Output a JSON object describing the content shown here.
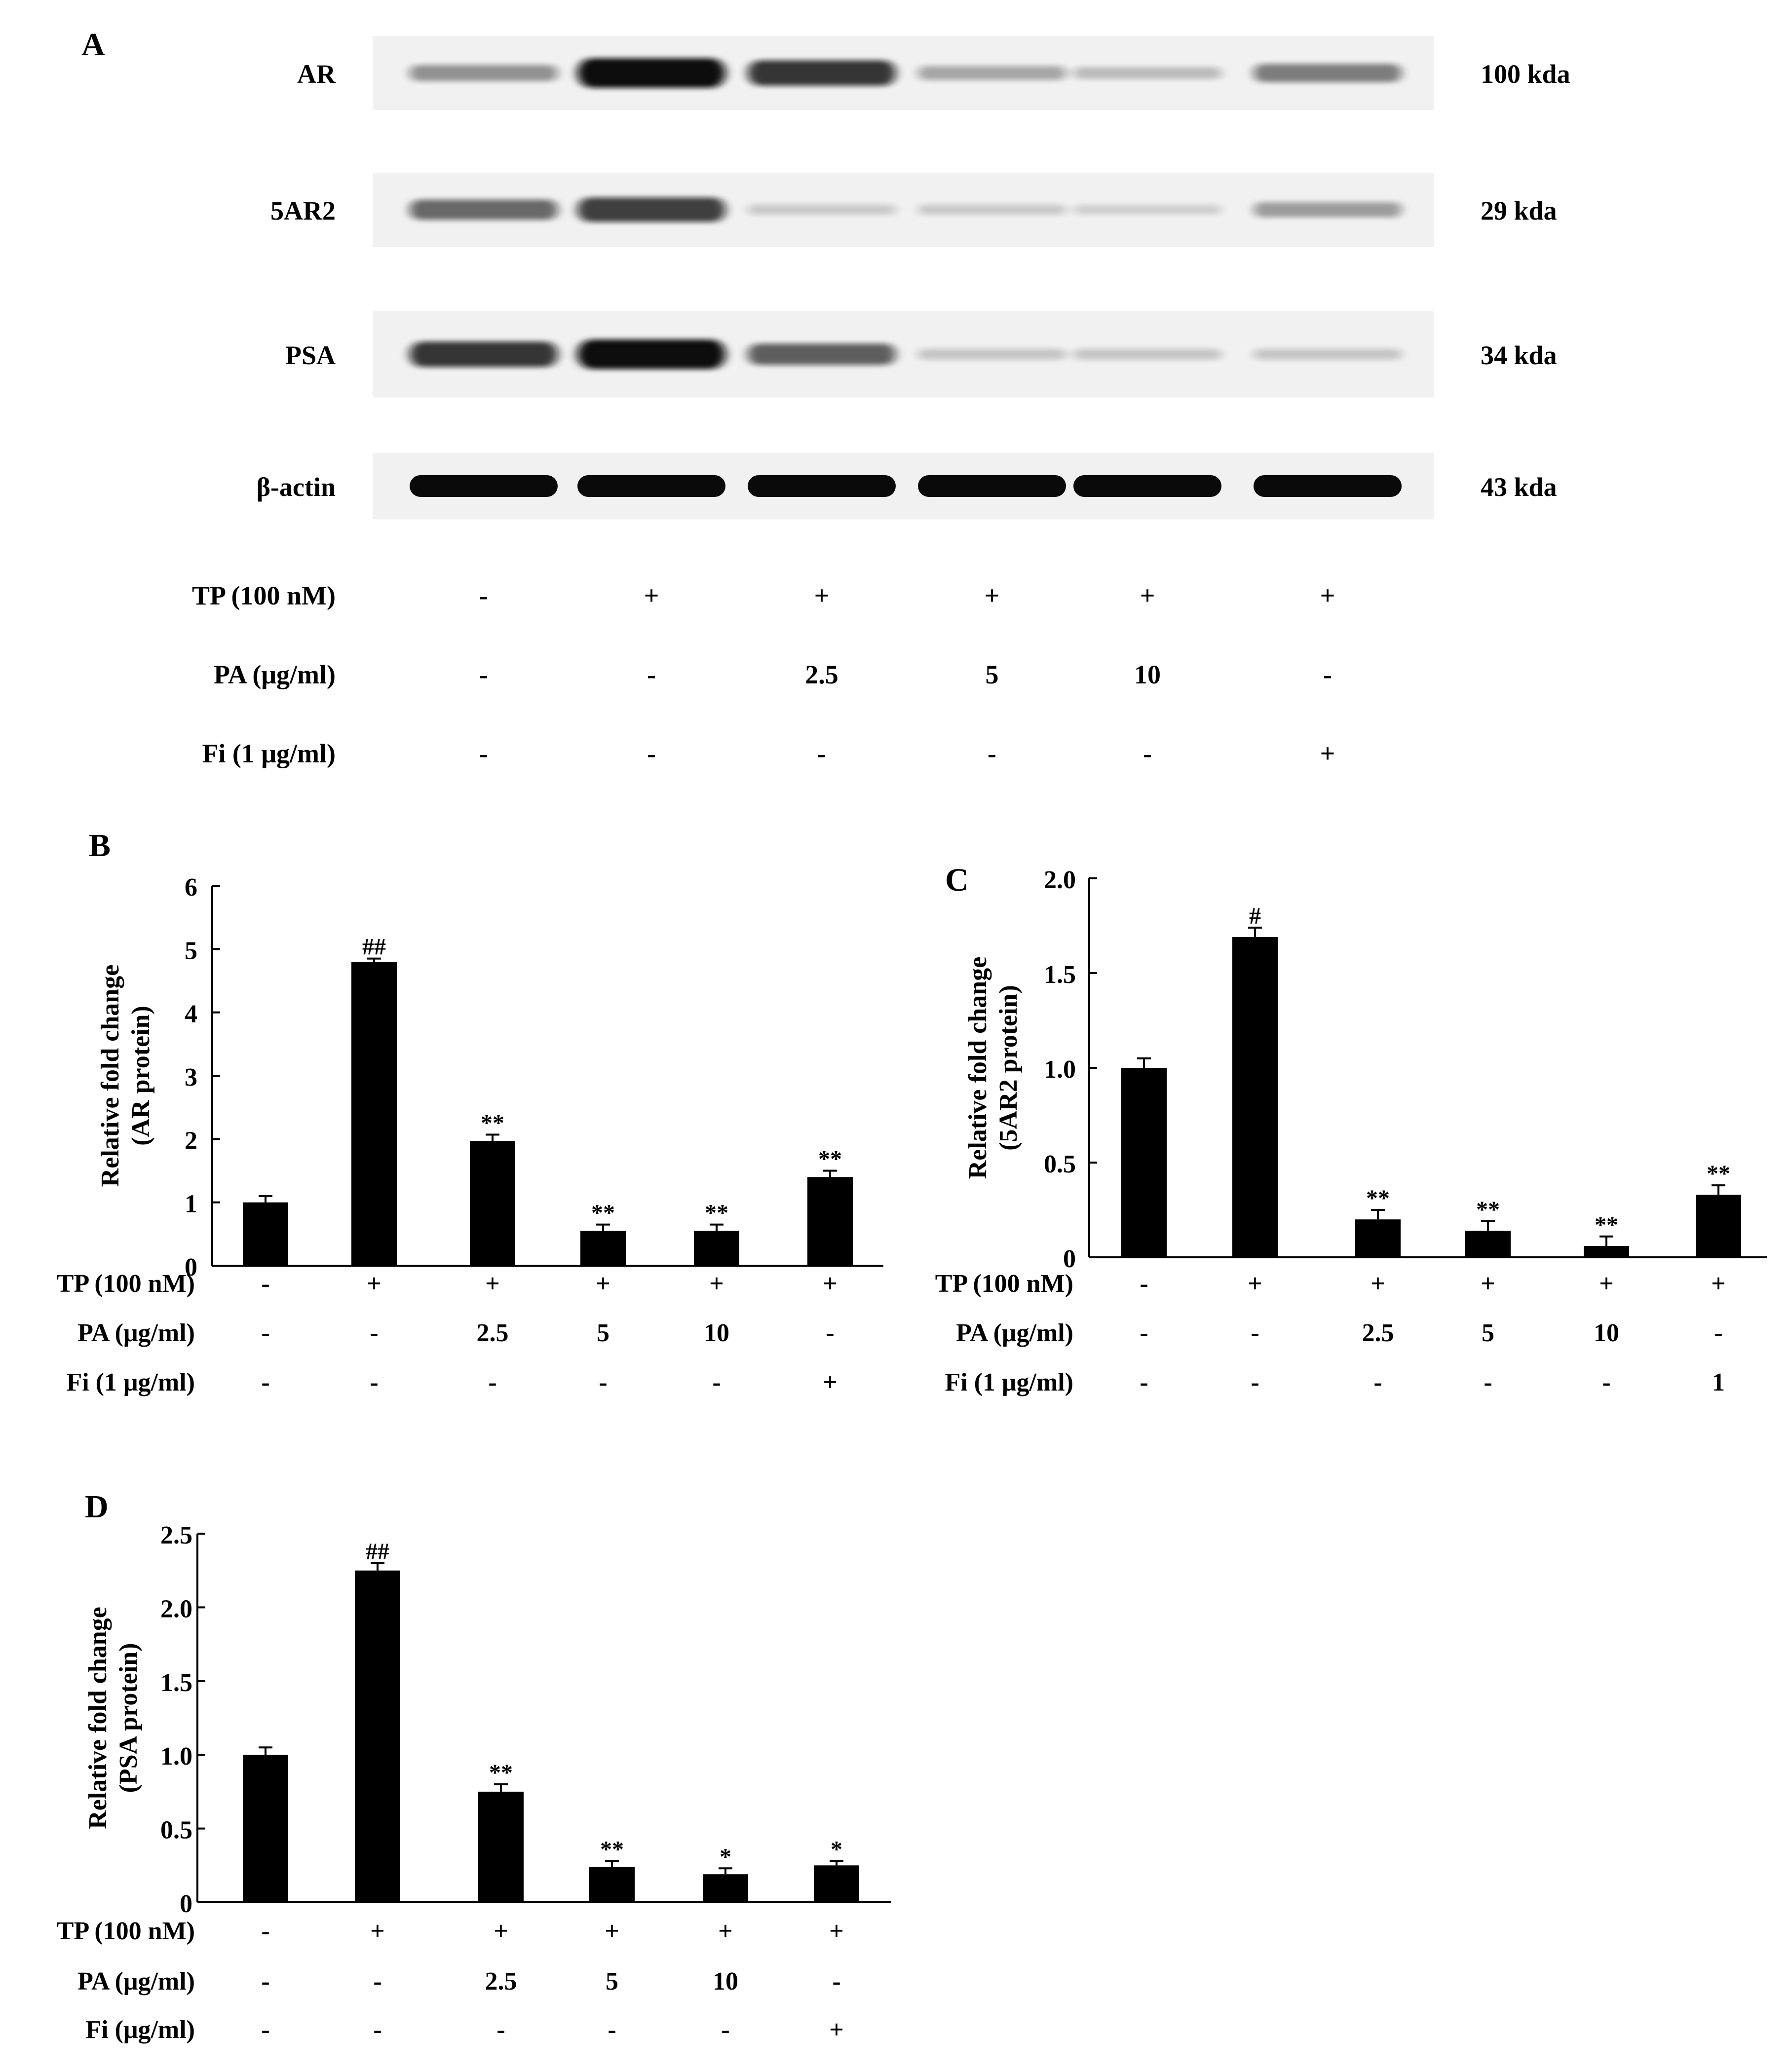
{
  "colors": {
    "bar": "#000000",
    "axis": "#000000",
    "blot_bg": "#f1f1f1",
    "band": "#0a0a0a",
    "text": "#000000"
  },
  "panel_a": {
    "letter": "A",
    "proteins": [
      {
        "name": "AR",
        "size": "100 kda",
        "intensities": [
          0.35,
          1.0,
          0.8,
          0.25,
          0.15,
          0.45
        ]
      },
      {
        "name": "5AR2",
        "size": "29 kda",
        "intensities": [
          0.55,
          0.75,
          0.08,
          0.08,
          0.05,
          0.3
        ]
      },
      {
        "name": "PSA",
        "size": "34 kda",
        "intensities": [
          0.8,
          1.0,
          0.6,
          0.1,
          0.1,
          0.1
        ]
      },
      {
        "name": "β-actin",
        "size": "43 kda",
        "intensities": [
          1.0,
          1.0,
          1.0,
          1.0,
          1.0,
          1.0
        ]
      }
    ],
    "treatment_rows": [
      {
        "label": "TP (100 nM)",
        "values": [
          "-",
          "+",
          "+",
          "+",
          "+",
          "+"
        ]
      },
      {
        "label": "PA (μg/ml)",
        "values": [
          "-",
          "-",
          "2.5",
          "5",
          "10",
          "-"
        ]
      },
      {
        "label": "Fi (1 μg/ml)",
        "values": [
          "-",
          "-",
          "-",
          "-",
          "-",
          "+"
        ]
      }
    ]
  },
  "chart_data": [
    {
      "panel": "B",
      "type": "bar",
      "title": "",
      "ylabel_line1": "Relative fold change",
      "ylabel_line2": "(AR protein)",
      "ylim": [
        0,
        6
      ],
      "yticks": [
        0,
        1,
        2,
        3,
        4,
        5,
        6
      ],
      "ytick_labels": [
        "0",
        "1",
        "2",
        "3",
        "4",
        "5",
        "6"
      ],
      "values": [
        1.0,
        4.8,
        1.97,
        0.55,
        0.55,
        1.4
      ],
      "errors": [
        0.1,
        0.05,
        0.1,
        0.1,
        0.1,
        0.1
      ],
      "significance": [
        "",
        "##",
        "**",
        "**",
        "**",
        "**"
      ],
      "treatment_rows": [
        {
          "label": "TP (100 nM)",
          "values": [
            "-",
            "+",
            "+",
            "+",
            "+",
            "+"
          ]
        },
        {
          "label": "PA (μg/ml)",
          "values": [
            "-",
            "-",
            "2.5",
            "5",
            "10",
            "-"
          ]
        },
        {
          "label": "Fi (1 μg/ml)",
          "values": [
            "-",
            "-",
            "-",
            "-",
            "-",
            "+"
          ]
        }
      ]
    },
    {
      "panel": "C",
      "type": "bar",
      "title": "",
      "ylabel_line1": "Relative fold change",
      "ylabel_line2": "(5AR2 protein)",
      "ylim": [
        0,
        2.0
      ],
      "yticks": [
        0,
        0.5,
        1.0,
        1.5,
        2.0
      ],
      "ytick_labels": [
        "0",
        "0.5",
        "1.0",
        "1.5",
        "2.0"
      ],
      "values": [
        1.0,
        1.69,
        0.2,
        0.14,
        0.06,
        0.33
      ],
      "errors": [
        0.05,
        0.05,
        0.05,
        0.05,
        0.05,
        0.05
      ],
      "significance": [
        "",
        "#",
        "**",
        "**",
        "**",
        "**"
      ],
      "treatment_rows": [
        {
          "label": "TP (100 nM)",
          "values": [
            "-",
            "+",
            "+",
            "+",
            "+",
            "+"
          ]
        },
        {
          "label": "PA (μg/ml)",
          "values": [
            "-",
            "-",
            "2.5",
            "5",
            "10",
            "-"
          ]
        },
        {
          "label": "Fi (1 μg/ml)",
          "values": [
            "-",
            "-",
            "-",
            "-",
            "-",
            "1"
          ]
        }
      ]
    },
    {
      "panel": "D",
      "type": "bar",
      "title": "",
      "ylabel_line1": "Relative fold change",
      "ylabel_line2": "(PSA protein)",
      "ylim": [
        0,
        2.5
      ],
      "yticks": [
        0,
        0.5,
        1.0,
        1.5,
        2.0,
        2.5
      ],
      "ytick_labels": [
        "0",
        "0.5",
        "1.0",
        "1.5",
        "2.0",
        "2.5"
      ],
      "values": [
        1.0,
        2.25,
        0.75,
        0.24,
        0.19,
        0.25
      ],
      "errors": [
        0.05,
        0.05,
        0.05,
        0.04,
        0.04,
        0.03
      ],
      "significance": [
        "",
        "##",
        "**",
        "**",
        "*",
        "*"
      ],
      "treatment_rows": [
        {
          "label": "TP (100 nM)",
          "values": [
            "-",
            "+",
            "+",
            "+",
            "+",
            "+"
          ]
        },
        {
          "label": "PA (μg/ml)",
          "values": [
            "-",
            "-",
            "2.5",
            "5",
            "10",
            "-"
          ]
        },
        {
          "label": "Fi (μg/ml)",
          "values": [
            "-",
            "-",
            "-",
            "-",
            "-",
            "+"
          ]
        }
      ]
    }
  ]
}
